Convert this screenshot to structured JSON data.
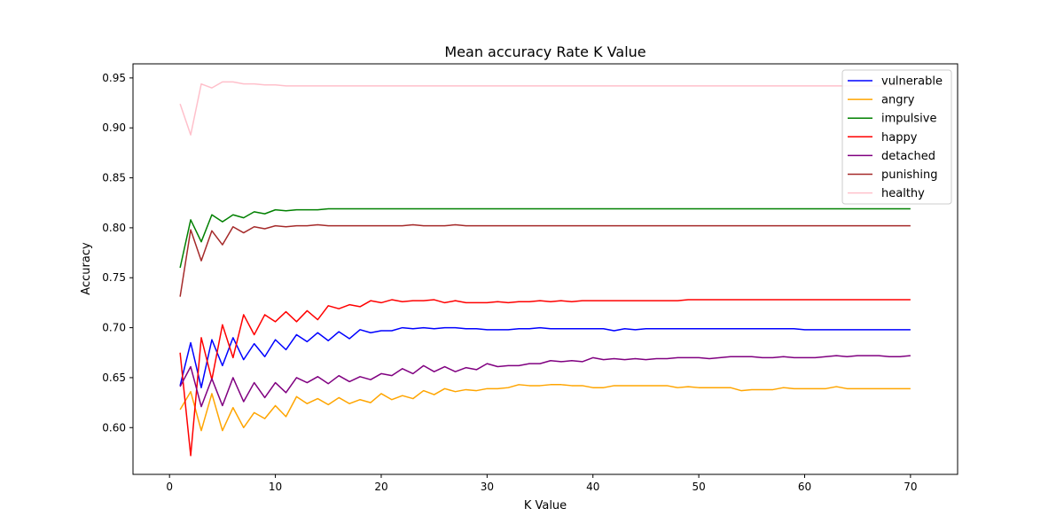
{
  "chart_data": {
    "type": "line",
    "title": "Mean accuracy Rate K Value",
    "xlabel": "K Value",
    "ylabel": "Accuracy",
    "xlim": [
      -3.45,
      74.45
    ],
    "ylim": [
      0.5532,
      0.9641
    ],
    "xticks": [
      0,
      10,
      20,
      30,
      40,
      50,
      60,
      70
    ],
    "yticks": [
      0.6,
      0.65,
      0.7,
      0.75,
      0.8,
      0.85,
      0.9,
      0.95
    ],
    "grid": false,
    "legend_position": "top-right",
    "x": [
      1,
      2,
      3,
      4,
      5,
      6,
      7,
      8,
      9,
      10,
      11,
      12,
      13,
      14,
      15,
      16,
      17,
      18,
      19,
      20,
      21,
      22,
      23,
      24,
      25,
      26,
      27,
      28,
      29,
      30,
      31,
      32,
      33,
      34,
      35,
      36,
      37,
      38,
      39,
      40,
      41,
      42,
      43,
      44,
      45,
      46,
      47,
      48,
      49,
      50,
      51,
      52,
      53,
      54,
      55,
      56,
      57,
      58,
      59,
      60,
      61,
      62,
      63,
      64,
      65,
      66,
      67,
      68,
      69,
      70
    ],
    "series": [
      {
        "name": "vulnerable",
        "color": "#0000ff",
        "values": [
          0.642,
          0.685,
          0.64,
          0.688,
          0.662,
          0.69,
          0.668,
          0.684,
          0.671,
          0.688,
          0.678,
          0.693,
          0.686,
          0.695,
          0.687,
          0.696,
          0.689,
          0.698,
          0.695,
          0.697,
          0.697,
          0.7,
          0.699,
          0.7,
          0.699,
          0.7,
          0.7,
          0.699,
          0.699,
          0.698,
          0.698,
          0.698,
          0.699,
          0.699,
          0.7,
          0.699,
          0.699,
          0.699,
          0.699,
          0.699,
          0.699,
          0.697,
          0.699,
          0.698,
          0.699,
          0.699,
          0.699,
          0.699,
          0.699,
          0.699,
          0.699,
          0.699,
          0.699,
          0.699,
          0.699,
          0.699,
          0.699,
          0.699,
          0.699,
          0.698,
          0.698,
          0.698,
          0.698,
          0.698,
          0.698,
          0.698,
          0.698,
          0.698,
          0.698,
          0.698
        ]
      },
      {
        "name": "angry",
        "color": "#ffa500",
        "values": [
          0.618,
          0.636,
          0.597,
          0.634,
          0.597,
          0.62,
          0.6,
          0.615,
          0.609,
          0.622,
          0.611,
          0.631,
          0.624,
          0.629,
          0.623,
          0.63,
          0.624,
          0.628,
          0.625,
          0.634,
          0.628,
          0.632,
          0.629,
          0.637,
          0.633,
          0.639,
          0.636,
          0.638,
          0.637,
          0.639,
          0.639,
          0.64,
          0.643,
          0.642,
          0.642,
          0.643,
          0.643,
          0.642,
          0.642,
          0.64,
          0.64,
          0.642,
          0.642,
          0.642,
          0.642,
          0.642,
          0.642,
          0.64,
          0.641,
          0.64,
          0.64,
          0.64,
          0.64,
          0.637,
          0.638,
          0.638,
          0.638,
          0.64,
          0.639,
          0.639,
          0.639,
          0.639,
          0.641,
          0.639,
          0.639,
          0.639,
          0.639,
          0.639,
          0.639,
          0.639
        ]
      },
      {
        "name": "impulsive",
        "color": "#008000",
        "values": [
          0.76,
          0.808,
          0.786,
          0.813,
          0.806,
          0.813,
          0.81,
          0.816,
          0.814,
          0.818,
          0.817,
          0.818,
          0.818,
          0.818,
          0.819,
          0.819,
          0.819,
          0.819,
          0.819,
          0.819,
          0.819,
          0.819,
          0.819,
          0.819,
          0.819,
          0.819,
          0.819,
          0.819,
          0.819,
          0.819,
          0.819,
          0.819,
          0.819,
          0.819,
          0.819,
          0.819,
          0.819,
          0.819,
          0.819,
          0.819,
          0.819,
          0.819,
          0.819,
          0.819,
          0.819,
          0.819,
          0.819,
          0.819,
          0.819,
          0.819,
          0.819,
          0.819,
          0.819,
          0.819,
          0.819,
          0.819,
          0.819,
          0.819,
          0.819,
          0.819,
          0.819,
          0.819,
          0.819,
          0.819,
          0.819,
          0.819,
          0.819,
          0.819,
          0.819,
          0.819
        ]
      },
      {
        "name": "happy",
        "color": "#ff0000",
        "values": [
          0.675,
          0.572,
          0.69,
          0.648,
          0.703,
          0.67,
          0.713,
          0.693,
          0.713,
          0.706,
          0.716,
          0.706,
          0.717,
          0.708,
          0.722,
          0.719,
          0.723,
          0.721,
          0.727,
          0.725,
          0.728,
          0.726,
          0.727,
          0.727,
          0.728,
          0.725,
          0.727,
          0.725,
          0.725,
          0.725,
          0.726,
          0.725,
          0.726,
          0.726,
          0.727,
          0.726,
          0.727,
          0.726,
          0.727,
          0.727,
          0.727,
          0.727,
          0.727,
          0.727,
          0.727,
          0.727,
          0.727,
          0.727,
          0.728,
          0.728,
          0.728,
          0.728,
          0.728,
          0.728,
          0.728,
          0.728,
          0.728,
          0.728,
          0.728,
          0.728,
          0.728,
          0.728,
          0.728,
          0.728,
          0.728,
          0.728,
          0.728,
          0.728,
          0.728,
          0.728
        ]
      },
      {
        "name": "detached",
        "color": "#800080",
        "values": [
          0.641,
          0.661,
          0.621,
          0.649,
          0.622,
          0.65,
          0.626,
          0.645,
          0.63,
          0.645,
          0.635,
          0.65,
          0.645,
          0.651,
          0.644,
          0.652,
          0.646,
          0.651,
          0.648,
          0.654,
          0.652,
          0.659,
          0.654,
          0.662,
          0.656,
          0.661,
          0.656,
          0.66,
          0.658,
          0.664,
          0.661,
          0.662,
          0.662,
          0.664,
          0.664,
          0.667,
          0.666,
          0.667,
          0.666,
          0.67,
          0.668,
          0.669,
          0.668,
          0.669,
          0.668,
          0.669,
          0.669,
          0.67,
          0.67,
          0.67,
          0.669,
          0.67,
          0.671,
          0.671,
          0.671,
          0.67,
          0.67,
          0.671,
          0.67,
          0.67,
          0.67,
          0.671,
          0.672,
          0.671,
          0.672,
          0.672,
          0.672,
          0.671,
          0.671,
          0.672
        ]
      },
      {
        "name": "punishing",
        "color": "#a52a2a",
        "values": [
          0.731,
          0.798,
          0.767,
          0.797,
          0.783,
          0.801,
          0.795,
          0.801,
          0.799,
          0.802,
          0.801,
          0.802,
          0.802,
          0.803,
          0.802,
          0.802,
          0.802,
          0.802,
          0.802,
          0.802,
          0.802,
          0.802,
          0.803,
          0.802,
          0.802,
          0.802,
          0.803,
          0.802,
          0.802,
          0.802,
          0.802,
          0.802,
          0.802,
          0.802,
          0.802,
          0.802,
          0.802,
          0.802,
          0.802,
          0.802,
          0.802,
          0.802,
          0.802,
          0.802,
          0.802,
          0.802,
          0.802,
          0.802,
          0.802,
          0.802,
          0.802,
          0.802,
          0.802,
          0.802,
          0.802,
          0.802,
          0.802,
          0.802,
          0.802,
          0.802,
          0.802,
          0.802,
          0.802,
          0.802,
          0.802,
          0.802,
          0.802,
          0.802,
          0.802,
          0.802
        ]
      },
      {
        "name": "healthy",
        "color": "#ffc0cb",
        "values": [
          0.924,
          0.893,
          0.944,
          0.94,
          0.946,
          0.946,
          0.944,
          0.944,
          0.943,
          0.943,
          0.942,
          0.942,
          0.942,
          0.942,
          0.942,
          0.942,
          0.942,
          0.942,
          0.942,
          0.942,
          0.942,
          0.942,
          0.942,
          0.942,
          0.942,
          0.942,
          0.942,
          0.942,
          0.942,
          0.942,
          0.942,
          0.942,
          0.942,
          0.942,
          0.942,
          0.942,
          0.942,
          0.942,
          0.942,
          0.942,
          0.942,
          0.942,
          0.942,
          0.942,
          0.942,
          0.942,
          0.942,
          0.942,
          0.942,
          0.942,
          0.942,
          0.942,
          0.942,
          0.942,
          0.942,
          0.942,
          0.942,
          0.942,
          0.942,
          0.942,
          0.942,
          0.942,
          0.942,
          0.942,
          0.942,
          0.942,
          0.942,
          0.942,
          0.942,
          0.942
        ]
      }
    ]
  }
}
